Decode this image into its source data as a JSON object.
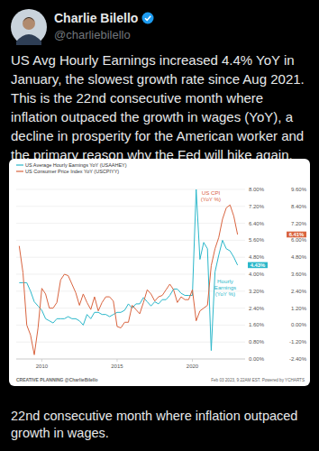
{
  "tweet": {
    "name": "Charlie Bilello",
    "handle": "@charliebilello",
    "text": "US Avg Hourly Earnings increased 4.4% YoY in January, the slowest growth rate since Aug 2021. This is the 22nd consecutive month where inflation outpaced the growth in wages (YoY), a decline in prosperity for the American worker and the primary reason why the Fed will hike again.",
    "caption": "22nd consecutive month where inflation outpaced growth in wages.",
    "footer_left": "CREATIVE PLANNING @CharlieBilello",
    "footer_right": "Feb 03 2023, 9:22AM EST. Powered by YCHARTS"
  },
  "chart_data": {
    "type": "line",
    "grid": true,
    "legend": "top-left",
    "x": [
      2008.5,
      2008.75,
      2009,
      2009.25,
      2009.5,
      2009.75,
      2010,
      2010.25,
      2010.5,
      2010.75,
      2011,
      2011.25,
      2011.5,
      2011.75,
      2012,
      2012.25,
      2012.5,
      2012.75,
      2013,
      2013.25,
      2013.5,
      2013.75,
      2014,
      2014.25,
      2014.5,
      2014.75,
      2015,
      2015.25,
      2015.5,
      2015.75,
      2016,
      2016.25,
      2016.5,
      2016.75,
      2017,
      2017.25,
      2017.5,
      2017.75,
      2018,
      2018.25,
      2018.5,
      2018.75,
      2019,
      2019.25,
      2019.5,
      2019.75,
      2020,
      2020.25,
      2020.5,
      2020.75,
      2021,
      2021.25,
      2021.5,
      2021.75,
      2022,
      2022.25,
      2022.5,
      2022.75,
      2023
    ],
    "xlim": [
      2008.3,
      2023.5
    ],
    "xticks": [
      2010,
      2015,
      2020
    ],
    "ylim": [
      0,
      8
    ],
    "yticks": [
      {
        "value": 0,
        "label": "0.00%"
      },
      {
        "value": 0.8,
        "label": "0.80%"
      },
      {
        "value": 1.6,
        "label": "1.60%"
      },
      {
        "value": 2.4,
        "label": "2.40%"
      },
      {
        "value": 3.2,
        "label": "3.20%"
      },
      {
        "value": 4,
        "label": "4.00%"
      },
      {
        "value": 4.8,
        "label": "4.80%"
      },
      {
        "value": 5.6,
        "label": "5.60%"
      },
      {
        "value": 6.4,
        "label": "6.40%"
      },
      {
        "value": 7.2,
        "label": "7.20%"
      },
      {
        "value": 8,
        "label": "8.00%"
      }
    ],
    "y2lim": [
      -2.4,
      9.6
    ],
    "y2ticks": [
      {
        "value": -2.4,
        "label": "-2.40%"
      },
      {
        "value": -1.2,
        "label": "-1.20%"
      },
      {
        "value": 0,
        "label": "0.00%"
      },
      {
        "value": 1.2,
        "label": "1.20%"
      },
      {
        "value": 2.4,
        "label": "2.40%"
      },
      {
        "value": 3.6,
        "label": "3.60%"
      },
      {
        "value": 4.8,
        "label": "4.80%"
      },
      {
        "value": 6,
        "label": "6.00%"
      },
      {
        "value": 7.2,
        "label": "7.20%"
      },
      {
        "value": 8.4,
        "label": "8.40%"
      },
      {
        "value": 9.6,
        "label": "9.60%"
      }
    ],
    "annotations": [
      {
        "text": "US CPI\n(YoY %)",
        "color": "#d9643f"
      },
      {
        "text": "Hourly\nEarnings\n(YoY %)",
        "color": "#2ab7ca"
      }
    ],
    "series": [
      {
        "name": "US Average Hourly Earnings YoY (USAAHEY)",
        "color": "#2ab7ca",
        "values": [
          3.6,
          3.6,
          3.6,
          3.2,
          2.7,
          2.5,
          2.3,
          1.9,
          1.8,
          1.7,
          1.9,
          1.9,
          1.9,
          2.0,
          1.9,
          1.9,
          1.8,
          1.6,
          2.1,
          1.9,
          2.2,
          2.2,
          2.1,
          2.1,
          2.0,
          2.1,
          2.2,
          2.2,
          2.3,
          2.6,
          2.4,
          2.6,
          2.6,
          2.9,
          2.7,
          2.5,
          2.7,
          2.6,
          2.8,
          2.8,
          3.0,
          3.3,
          3.3,
          3.1,
          3.0,
          3.0,
          3.0,
          8.0,
          4.7,
          5.5,
          5.2,
          0.4,
          4.1,
          4.9,
          5.6,
          5.2,
          5.1,
          4.8,
          4.43
        ],
        "value_labels": [
          null,
          null,
          null,
          null,
          null,
          null,
          null,
          null,
          null,
          null,
          null,
          null,
          null,
          null,
          null,
          null,
          null,
          null,
          null,
          null,
          null,
          null,
          null,
          null,
          null,
          null,
          null,
          null,
          null,
          null,
          null,
          null,
          null,
          null,
          null,
          null,
          null,
          null,
          null,
          null,
          null,
          null,
          null,
          null,
          null,
          null,
          null,
          null,
          null,
          null,
          null,
          null,
          null,
          null,
          null,
          null,
          null,
          null,
          "4.43%"
        ]
      },
      {
        "name": "US Consumer Price Index YoY (USCPIYY)",
        "color": "#d9643f",
        "axis": "y2",
        "values": [
          5.6,
          3.7,
          0.0,
          -0.7,
          -2.1,
          -0.2,
          2.6,
          2.2,
          1.2,
          1.2,
          1.6,
          3.2,
          3.6,
          3.5,
          2.9,
          2.3,
          1.4,
          2.2,
          1.6,
          1.1,
          2.0,
          1.0,
          1.6,
          2.0,
          2.0,
          1.7,
          -0.1,
          -0.2,
          0.2,
          0.2,
          1.4,
          1.1,
          0.8,
          1.6,
          2.5,
          2.2,
          1.7,
          2.0,
          2.1,
          2.5,
          2.9,
          2.5,
          1.6,
          2.0,
          1.8,
          1.8,
          2.5,
          0.3,
          1.0,
          1.2,
          1.4,
          4.2,
          5.4,
          6.2,
          7.5,
          8.3,
          8.5,
          7.7,
          6.41
        ],
        "value_labels": [
          null,
          null,
          null,
          null,
          null,
          null,
          null,
          null,
          null,
          null,
          null,
          null,
          null,
          null,
          null,
          null,
          null,
          null,
          null,
          null,
          null,
          null,
          null,
          null,
          null,
          null,
          null,
          null,
          null,
          null,
          null,
          null,
          null,
          null,
          null,
          null,
          null,
          null,
          null,
          null,
          null,
          null,
          null,
          null,
          null,
          null,
          null,
          null,
          null,
          null,
          null,
          null,
          null,
          null,
          null,
          null,
          null,
          null,
          "6.41%"
        ]
      }
    ]
  }
}
